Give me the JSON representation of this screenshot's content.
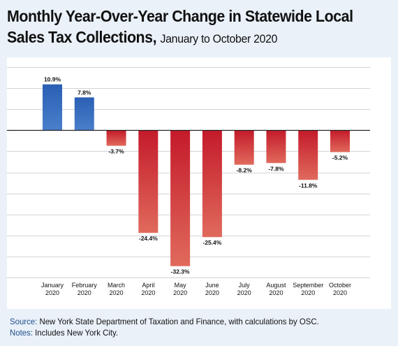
{
  "title": {
    "line1": "Monthly Year-Over-Year Change in Statewide Local",
    "line2": "Sales Tax Collections,",
    "subtitle": "January to October 2020"
  },
  "footer": {
    "source_label": "Source:",
    "source_text": "New York State Department of Taxation and Finance, with calculations by OSC.",
    "notes_label": "Notes:",
    "notes_text": "Includes New York City."
  },
  "colors": {
    "positive": "#2e63b8",
    "negative": "#c8202e",
    "grid": "#cfd3d8",
    "zero_line": "#222222"
  },
  "chart_data": {
    "type": "bar",
    "title": "Monthly Year-Over-Year Change in Statewide Local Sales Tax Collections, January to October 2020",
    "xlabel": "",
    "ylabel": "",
    "categories": [
      [
        "January",
        "2020"
      ],
      [
        "February",
        "2020"
      ],
      [
        "March",
        "2020"
      ],
      [
        "April",
        "2020"
      ],
      [
        "May",
        "2020"
      ],
      [
        "June",
        "2020"
      ],
      [
        "July",
        "2020"
      ],
      [
        "August",
        "2020"
      ],
      [
        "September",
        "2020"
      ],
      [
        "October",
        "2020"
      ]
    ],
    "values": [
      10.9,
      7.8,
      -3.7,
      -24.4,
      -32.3,
      -25.4,
      -8.2,
      -7.8,
      -11.8,
      -5.2
    ],
    "labels": [
      "10.9%",
      "7.8%",
      "-3.7%",
      "-24.4%",
      "-32.3%",
      "-25.4%",
      "-8.2%",
      "-7.8%",
      "-11.8%",
      "-5.2%"
    ],
    "ylim": [
      -35,
      15
    ],
    "grid_step": 5,
    "grid": true,
    "y_tick_labels_shown": false,
    "legend": "none"
  }
}
